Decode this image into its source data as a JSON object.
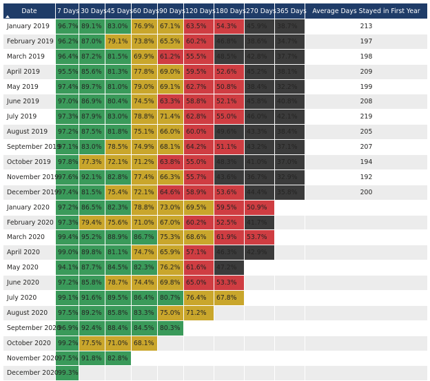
{
  "table": {
    "headers": [
      "Date",
      "7 Days",
      "30 Days",
      "45 Days",
      "60 Days",
      "90 Days",
      "120 Days",
      "180 Days",
      "270 Days",
      "365 Days",
      "Average Days Stayed in First Year"
    ],
    "sort_icon": "sort-ascending-icon",
    "colors": {
      "header": "#1f3c68",
      "green": "#3a9a5a",
      "yellow": "#c9a62c",
      "red": "#cf3d42",
      "dark": "#3b3b3b",
      "stripe": "#ececec"
    },
    "rows": [
      {
        "date": "January 2019",
        "cells": [
          [
            "96.7%",
            "green"
          ],
          [
            "89.1%",
            "green"
          ],
          [
            "83.0%",
            "green"
          ],
          [
            "76.9%",
            "yellow"
          ],
          [
            "67.1%",
            "yellow"
          ],
          [
            "63.5%",
            "red"
          ],
          [
            "54.3%",
            "red"
          ],
          [
            "45.9%",
            "dark"
          ],
          [
            "38.7%",
            "dark"
          ]
        ],
        "avg": "213"
      },
      {
        "date": "February 2019",
        "cells": [
          [
            "96.2%",
            "green"
          ],
          [
            "87.0%",
            "green"
          ],
          [
            "79.1%",
            "yellow"
          ],
          [
            "73.8%",
            "yellow"
          ],
          [
            "65.5%",
            "yellow"
          ],
          [
            "60.2%",
            "red"
          ],
          [
            "46.8%",
            "dark"
          ],
          [
            "38.6%",
            "dark"
          ],
          [
            "34.7%",
            "dark"
          ]
        ],
        "avg": "197"
      },
      {
        "date": "March 2019",
        "cells": [
          [
            "96.4%",
            "green"
          ],
          [
            "87.2%",
            "green"
          ],
          [
            "81.5%",
            "green"
          ],
          [
            "69.9%",
            "yellow"
          ],
          [
            "61.2%",
            "red"
          ],
          [
            "55.5%",
            "red"
          ],
          [
            "48.5%",
            "dark"
          ],
          [
            "42.8%",
            "dark"
          ],
          [
            "37.7%",
            "dark"
          ]
        ],
        "avg": "198"
      },
      {
        "date": "April 2019",
        "cells": [
          [
            "95.5%",
            "green"
          ],
          [
            "85.6%",
            "green"
          ],
          [
            "81.3%",
            "green"
          ],
          [
            "77.8%",
            "yellow"
          ],
          [
            "69.0%",
            "yellow"
          ],
          [
            "59.5%",
            "red"
          ],
          [
            "52.6%",
            "red"
          ],
          [
            "45.2%",
            "dark"
          ],
          [
            "38.1%",
            "dark"
          ]
        ],
        "avg": "209"
      },
      {
        "date": "May 2019",
        "cells": [
          [
            "97.4%",
            "green"
          ],
          [
            "89.7%",
            "green"
          ],
          [
            "81.0%",
            "green"
          ],
          [
            "79.0%",
            "yellow"
          ],
          [
            "69.1%",
            "yellow"
          ],
          [
            "62.7%",
            "red"
          ],
          [
            "50.8%",
            "red"
          ],
          [
            "38.4%",
            "dark"
          ],
          [
            "32.2%",
            "dark"
          ]
        ],
        "avg": "199"
      },
      {
        "date": "June 2019",
        "cells": [
          [
            "97.0%",
            "green"
          ],
          [
            "86.9%",
            "green"
          ],
          [
            "80.4%",
            "green"
          ],
          [
            "74.5%",
            "yellow"
          ],
          [
            "63.3%",
            "red"
          ],
          [
            "58.8%",
            "red"
          ],
          [
            "52.1%",
            "red"
          ],
          [
            "45.8%",
            "dark"
          ],
          [
            "40.8%",
            "dark"
          ]
        ],
        "avg": "208"
      },
      {
        "date": "July 2019",
        "cells": [
          [
            "97.3%",
            "green"
          ],
          [
            "87.9%",
            "green"
          ],
          [
            "83.0%",
            "green"
          ],
          [
            "78.8%",
            "yellow"
          ],
          [
            "71.4%",
            "yellow"
          ],
          [
            "62.8%",
            "red"
          ],
          [
            "55.0%",
            "red"
          ],
          [
            "46.0%",
            "dark"
          ],
          [
            "42.1%",
            "dark"
          ]
        ],
        "avg": "219"
      },
      {
        "date": "August 2019",
        "cells": [
          [
            "97.2%",
            "green"
          ],
          [
            "87.5%",
            "green"
          ],
          [
            "81.8%",
            "green"
          ],
          [
            "75.1%",
            "yellow"
          ],
          [
            "66.0%",
            "yellow"
          ],
          [
            "60.0%",
            "red"
          ],
          [
            "49.6%",
            "dark"
          ],
          [
            "43.3%",
            "dark"
          ],
          [
            "38.4%",
            "dark"
          ]
        ],
        "avg": "205"
      },
      {
        "date": "September 2019",
        "cells": [
          [
            "97.1%",
            "green"
          ],
          [
            "83.0%",
            "green"
          ],
          [
            "78.5%",
            "yellow"
          ],
          [
            "74.9%",
            "yellow"
          ],
          [
            "68.1%",
            "yellow"
          ],
          [
            "64.2%",
            "red"
          ],
          [
            "51.1%",
            "red"
          ],
          [
            "43.2%",
            "dark"
          ],
          [
            "37.1%",
            "dark"
          ]
        ],
        "avg": "207"
      },
      {
        "date": "October 2019",
        "cells": [
          [
            "97.8%",
            "green"
          ],
          [
            "77.3%",
            "yellow"
          ],
          [
            "72.1%",
            "yellow"
          ],
          [
            "71.2%",
            "yellow"
          ],
          [
            "63.8%",
            "red"
          ],
          [
            "55.0%",
            "red"
          ],
          [
            "48.3%",
            "dark"
          ],
          [
            "41.0%",
            "dark"
          ],
          [
            "37.0%",
            "dark"
          ]
        ],
        "avg": "194"
      },
      {
        "date": "November 2019",
        "cells": [
          [
            "97.6%",
            "green"
          ],
          [
            "92.1%",
            "green"
          ],
          [
            "82.8%",
            "green"
          ],
          [
            "77.4%",
            "yellow"
          ],
          [
            "66.3%",
            "yellow"
          ],
          [
            "55.7%",
            "red"
          ],
          [
            "43.6%",
            "dark"
          ],
          [
            "36.7%",
            "dark"
          ],
          [
            "32.9%",
            "dark"
          ]
        ],
        "avg": "192"
      },
      {
        "date": "December 2019",
        "cells": [
          [
            "97.4%",
            "green"
          ],
          [
            "81.5%",
            "green"
          ],
          [
            "75.4%",
            "yellow"
          ],
          [
            "72.1%",
            "yellow"
          ],
          [
            "64.6%",
            "red"
          ],
          [
            "58.9%",
            "red"
          ],
          [
            "53.6%",
            "red"
          ],
          [
            "44.4%",
            "dark"
          ],
          [
            "35.8%",
            "dark"
          ]
        ],
        "avg": "200"
      },
      {
        "date": "January 2020",
        "cells": [
          [
            "97.2%",
            "green"
          ],
          [
            "86.5%",
            "green"
          ],
          [
            "82.3%",
            "green"
          ],
          [
            "78.8%",
            "yellow"
          ],
          [
            "73.0%",
            "yellow"
          ],
          [
            "69.5%",
            "yellow"
          ],
          [
            "59.5%",
            "red"
          ],
          [
            "50.9%",
            "red"
          ],
          [
            "",
            ""
          ]
        ],
        "avg": ""
      },
      {
        "date": "February 2020",
        "cells": [
          [
            "97.3%",
            "green"
          ],
          [
            "79.4%",
            "yellow"
          ],
          [
            "75.6%",
            "yellow"
          ],
          [
            "71.0%",
            "yellow"
          ],
          [
            "67.0%",
            "yellow"
          ],
          [
            "60.2%",
            "red"
          ],
          [
            "52.5%",
            "red"
          ],
          [
            "41.7%",
            "dark"
          ],
          [
            "",
            ""
          ]
        ],
        "avg": ""
      },
      {
        "date": "March 2020",
        "cells": [
          [
            "99.4%",
            "green"
          ],
          [
            "95.2%",
            "green"
          ],
          [
            "88.9%",
            "green"
          ],
          [
            "86.7%",
            "green"
          ],
          [
            "75.3%",
            "yellow"
          ],
          [
            "68.6%",
            "yellow"
          ],
          [
            "61.9%",
            "red"
          ],
          [
            "53.7%",
            "red"
          ],
          [
            "",
            ""
          ]
        ],
        "avg": ""
      },
      {
        "date": "April 2020",
        "cells": [
          [
            "99.0%",
            "green"
          ],
          [
            "89.8%",
            "green"
          ],
          [
            "81.1%",
            "green"
          ],
          [
            "74.7%",
            "yellow"
          ],
          [
            "65.9%",
            "yellow"
          ],
          [
            "57.1%",
            "red"
          ],
          [
            "46.3%",
            "dark"
          ],
          [
            "42.9%",
            "dark"
          ],
          [
            "",
            ""
          ]
        ],
        "avg": ""
      },
      {
        "date": "May 2020",
        "cells": [
          [
            "94.1%",
            "green"
          ],
          [
            "87.7%",
            "green"
          ],
          [
            "84.5%",
            "green"
          ],
          [
            "82.3%",
            "green"
          ],
          [
            "76.2%",
            "yellow"
          ],
          [
            "61.6%",
            "red"
          ],
          [
            "47.2%",
            "dark"
          ],
          [
            "",
            ""
          ],
          [
            "",
            ""
          ]
        ],
        "avg": ""
      },
      {
        "date": "June 2020",
        "cells": [
          [
            "97.2%",
            "green"
          ],
          [
            "85.8%",
            "green"
          ],
          [
            "78.7%",
            "yellow"
          ],
          [
            "74.4%",
            "yellow"
          ],
          [
            "69.8%",
            "yellow"
          ],
          [
            "65.0%",
            "red"
          ],
          [
            "53.3%",
            "red"
          ],
          [
            "",
            ""
          ],
          [
            "",
            ""
          ]
        ],
        "avg": ""
      },
      {
        "date": "July 2020",
        "cells": [
          [
            "99.1%",
            "green"
          ],
          [
            "91.6%",
            "green"
          ],
          [
            "89.5%",
            "green"
          ],
          [
            "86.4%",
            "green"
          ],
          [
            "80.7%",
            "green"
          ],
          [
            "76.4%",
            "yellow"
          ],
          [
            "67.8%",
            "yellow"
          ],
          [
            "",
            ""
          ],
          [
            "",
            ""
          ]
        ],
        "avg": ""
      },
      {
        "date": "August 2020",
        "cells": [
          [
            "97.5%",
            "green"
          ],
          [
            "89.2%",
            "green"
          ],
          [
            "85.8%",
            "green"
          ],
          [
            "83.3%",
            "green"
          ],
          [
            "75.0%",
            "yellow"
          ],
          [
            "71.2%",
            "yellow"
          ],
          [
            "",
            ""
          ],
          [
            "",
            ""
          ],
          [
            "",
            ""
          ]
        ],
        "avg": ""
      },
      {
        "date": "September 2020",
        "cells": [
          [
            "96.9%",
            "green"
          ],
          [
            "92.4%",
            "green"
          ],
          [
            "88.4%",
            "green"
          ],
          [
            "84.5%",
            "green"
          ],
          [
            "80.3%",
            "green"
          ],
          [
            "",
            ""
          ],
          [
            "",
            ""
          ],
          [
            "",
            ""
          ],
          [
            "",
            ""
          ]
        ],
        "avg": ""
      },
      {
        "date": "October 2020",
        "cells": [
          [
            "99.2%",
            "green"
          ],
          [
            "77.5%",
            "yellow"
          ],
          [
            "71.0%",
            "yellow"
          ],
          [
            "68.1%",
            "yellow"
          ],
          [
            "",
            ""
          ],
          [
            "",
            ""
          ],
          [
            "",
            ""
          ],
          [
            "",
            ""
          ],
          [
            "",
            ""
          ]
        ],
        "avg": ""
      },
      {
        "date": "November 2020",
        "cells": [
          [
            "97.5%",
            "green"
          ],
          [
            "91.8%",
            "green"
          ],
          [
            "82.8%",
            "green"
          ],
          [
            "",
            ""
          ],
          [
            "",
            ""
          ],
          [
            "",
            ""
          ],
          [
            "",
            ""
          ],
          [
            "",
            ""
          ],
          [
            "",
            ""
          ]
        ],
        "avg": ""
      },
      {
        "date": "December 2020",
        "cells": [
          [
            "99.3%",
            "green"
          ],
          [
            "",
            ""
          ],
          [
            "",
            ""
          ],
          [
            "",
            ""
          ],
          [
            "",
            ""
          ],
          [
            "",
            ""
          ],
          [
            "",
            ""
          ],
          [
            "",
            ""
          ],
          [
            "",
            ""
          ]
        ],
        "avg": ""
      }
    ]
  }
}
